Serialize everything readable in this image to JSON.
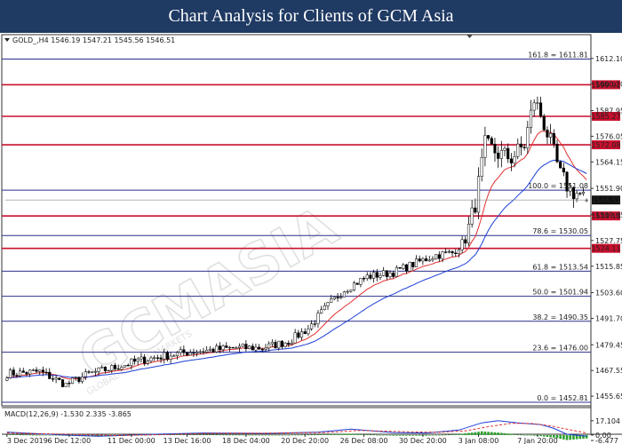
{
  "banner": {
    "title": "Chart Analysis for Clients of GCM Asia"
  },
  "watermark": {
    "text": "GCMASIA",
    "subtext": "GLOBAL CAPITAL MARKETS"
  },
  "colors": {
    "banner_bg": "#1f3a63",
    "bull_candle": "#ffffff",
    "bear_candle": "#000000",
    "fib_line": "#2b2f8c",
    "sr_line": "#c8102e",
    "ma_fast": "#e03030",
    "ma_slow": "#1c3fd6",
    "macd_line": "#1c3fd6",
    "signal_line": "#e03030",
    "hist": "#2ca02c"
  },
  "chart_data": [
    {
      "type": "candlestick",
      "header": "GOLD_,H4  1546.19 1547.21 1545.56 1546.51",
      "symbol": "GOLD_,H4",
      "ohlc_last": [
        1546.19,
        1547.21,
        1545.56,
        1546.51
      ],
      "current_price": 1546.51,
      "y_ticks": [
        1455.65,
        1467.55,
        1479.45,
        1491.7,
        1503.6,
        1515.85,
        1527.75,
        1539.65,
        1551.9,
        1564.15,
        1576.05,
        1587.95,
        1600.2,
        1612.1
      ],
      "y_tick_labels": [
        "1455.65",
        "1467.55",
        "1479.45",
        "1491.70",
        "1503.60",
        "1515.85",
        "1527.75",
        "1539.65",
        "1551.90",
        "1564.15",
        "1576.05",
        "1587.95",
        "1600.20",
        "1612.10"
      ],
      "ylim": [
        1452.0,
        1619.0
      ],
      "x_labels": [
        "3 Dec 2019",
        "6 Dec 12:00",
        "11 Dec 00:00",
        "13 Dec 16:00",
        "18 Dec 04:00",
        "20 Dec 20:00",
        "26 Dec 08:00",
        "30 Dec 20:00",
        "3 Jan 08:00",
        "7 Jan 20:00"
      ],
      "x_label_index": [
        0,
        19,
        38,
        55,
        73,
        91,
        109,
        127,
        144,
        162
      ],
      "fibonacci": [
        {
          "label": "161.8 = 1611.81",
          "value": 1611.81
        },
        {
          "label": "100.0 = 1551.08",
          "value": 1551.08
        },
        {
          "label": "78.6 = 1530.05",
          "value": 1530.05
        },
        {
          "label": "61.8 = 1513.54",
          "value": 1513.54
        },
        {
          "label": "50.0 = 1501.94",
          "value": 1501.94
        },
        {
          "label": "38.2 = 1490.35",
          "value": 1490.35
        },
        {
          "label": "23.6 = 1476.00",
          "value": 1476.0
        },
        {
          "label": "0.0 = 1452.81",
          "value": 1452.81
        }
      ],
      "levels": [
        {
          "label": "1599.91",
          "value": 1599.91
        },
        {
          "label": "1585.27",
          "value": 1585.27
        },
        {
          "label": "1572.08",
          "value": 1572.08
        },
        {
          "label": "1539.13",
          "value": 1539.13
        },
        {
          "label": "1524.11",
          "value": 1524.11
        }
      ],
      "key_points": [
        {
          "i": 0,
          "close": 1466
        },
        {
          "i": 10,
          "close": 1467
        },
        {
          "i": 18,
          "close": 1461
        },
        {
          "i": 25,
          "close": 1466
        },
        {
          "i": 33,
          "close": 1469
        },
        {
          "i": 40,
          "close": 1472
        },
        {
          "i": 47,
          "close": 1474
        },
        {
          "i": 55,
          "close": 1476
        },
        {
          "i": 62,
          "close": 1477
        },
        {
          "i": 70,
          "close": 1478
        },
        {
          "i": 78,
          "close": 1478
        },
        {
          "i": 86,
          "close": 1481
        },
        {
          "i": 92,
          "close": 1487
        },
        {
          "i": 97,
          "close": 1496
        },
        {
          "i": 103,
          "close": 1505
        },
        {
          "i": 110,
          "close": 1511
        },
        {
          "i": 118,
          "close": 1513
        },
        {
          "i": 126,
          "close": 1518
        },
        {
          "i": 131,
          "close": 1521
        },
        {
          "i": 136,
          "close": 1522
        },
        {
          "i": 140,
          "close": 1528
        },
        {
          "i": 143,
          "close": 1545
        },
        {
          "i": 146,
          "close": 1572
        },
        {
          "i": 150,
          "close": 1568
        },
        {
          "i": 154,
          "close": 1566
        },
        {
          "i": 158,
          "close": 1572
        },
        {
          "i": 161,
          "close": 1593
        },
        {
          "i": 163,
          "close": 1586
        },
        {
          "i": 166,
          "close": 1573
        },
        {
          "i": 169,
          "close": 1558
        },
        {
          "i": 172,
          "close": 1551
        },
        {
          "i": 175,
          "close": 1549
        },
        {
          "i": 177,
          "close": 1546.5
        }
      ]
    },
    {
      "type": "line",
      "header": "MACD(12,26,9) -1.530 2.335 -3.865",
      "y_ticks": [
        17.104,
        0.0,
        -6.477
      ],
      "y_tick_labels": [
        "17.104",
        "0.00",
        "-6.477"
      ],
      "ylim": [
        -7.5,
        19.0
      ],
      "series": [
        {
          "name": "MACD",
          "points": [
            [
              0,
              3.5
            ],
            [
              15,
              0.5
            ],
            [
              28,
              -1.5
            ],
            [
              45,
              1.0
            ],
            [
              60,
              2.5
            ],
            [
              80,
              2.0
            ],
            [
              95,
              3.5
            ],
            [
              105,
              7.0
            ],
            [
              118,
              3.0
            ],
            [
              128,
              2.5
            ],
            [
              138,
              6.0
            ],
            [
              145,
              14.5
            ],
            [
              150,
              17.1
            ],
            [
              156,
              14.5
            ],
            [
              163,
              12.5
            ],
            [
              167,
              8.0
            ],
            [
              171,
              1.0
            ],
            [
              177,
              -1.5
            ]
          ]
        },
        {
          "name": "Signal",
          "points": [
            [
              0,
              2.5
            ],
            [
              18,
              1.0
            ],
            [
              32,
              -0.5
            ],
            [
              48,
              0.5
            ],
            [
              62,
              2.0
            ],
            [
              80,
              2.2
            ],
            [
              97,
              3.0
            ],
            [
              108,
              5.5
            ],
            [
              122,
              3.8
            ],
            [
              132,
              3.3
            ],
            [
              140,
              5.0
            ],
            [
              147,
              10.0
            ],
            [
              154,
              14.0
            ],
            [
              160,
              13.8
            ],
            [
              166,
              11.0
            ],
            [
              171,
              7.0
            ],
            [
              177,
              2.5
            ]
          ]
        }
      ],
      "histogram_points": [
        [
          0,
          0.8
        ],
        [
          15,
          -0.5
        ],
        [
          28,
          -2.0
        ],
        [
          45,
          0.5
        ],
        [
          60,
          0.5
        ],
        [
          80,
          -0.2
        ],
        [
          95,
          0.5
        ],
        [
          105,
          1.5
        ],
        [
          118,
          -0.8
        ],
        [
          128,
          -0.8
        ],
        [
          138,
          1.0
        ],
        [
          145,
          4.5
        ],
        [
          150,
          3.0
        ],
        [
          156,
          0.5
        ],
        [
          163,
          -1.3
        ],
        [
          167,
          -3.0
        ],
        [
          171,
          -6.0
        ],
        [
          177,
          -4.0
        ]
      ]
    }
  ]
}
